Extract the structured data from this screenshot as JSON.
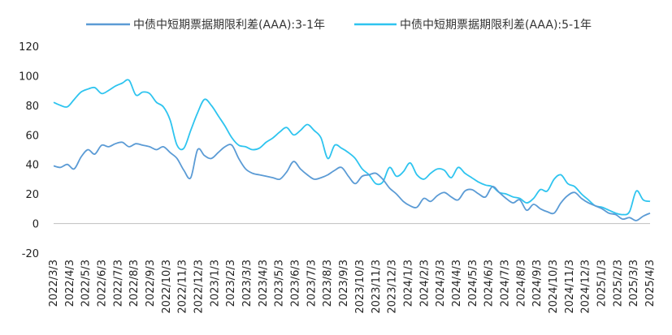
{
  "chart_data": {
    "type": "line",
    "title": "",
    "xlabel": "",
    "ylabel": "",
    "ylim": [
      -20,
      120
    ],
    "yticks": [
      -20,
      0,
      20,
      40,
      60,
      80,
      100,
      120
    ],
    "grid": false,
    "legend_position": "top",
    "x_tick_labels": [
      "2022/3/3",
      "2022/4/3",
      "2022/5/3",
      "2022/6/3",
      "2022/7/3",
      "2022/8/3",
      "2022/9/3",
      "2022/10/3",
      "2022/11/3",
      "2022/12/3",
      "2023/1/3",
      "2023/2/3",
      "2023/3/3",
      "2023/4/3",
      "2023/5/3",
      "2023/6/3",
      "2023/7/3",
      "2023/8/3",
      "2023/9/3",
      "2023/10/3",
      "2023/11/3",
      "2023/12/3",
      "2024/1/3",
      "2024/2/3",
      "2024/3/3",
      "2024/4/3",
      "2024/5/3",
      "2024/6/3",
      "2024/7/3",
      "2024/8/3",
      "2024/9/3",
      "2024/10/3",
      "2024/11/3",
      "2024/12/3",
      "2025/1/3",
      "2025/2/3",
      "2025/3/3",
      "2025/4/3"
    ],
    "series": [
      {
        "name": "中债中短期票据期限利差(AAA):3-1年",
        "color": "#5b9bd5",
        "values": [
          39,
          38,
          40,
          37,
          45,
          50,
          47,
          53,
          52,
          54,
          55,
          52,
          54,
          53,
          52,
          50,
          52,
          48,
          44,
          36,
          31,
          50,
          46,
          44,
          48,
          52,
          53,
          44,
          37,
          34,
          33,
          32,
          31,
          30,
          35,
          42,
          37,
          33,
          30,
          31,
          33,
          36,
          38,
          32,
          27,
          32,
          33,
          34,
          30,
          24,
          20,
          15,
          12,
          11,
          17,
          15,
          19,
          21,
          18,
          16,
          22,
          23,
          20,
          18,
          25,
          21,
          17,
          14,
          16,
          9,
          13,
          10,
          8,
          7,
          14,
          19,
          21,
          17,
          14,
          12,
          10,
          7,
          6,
          3,
          4,
          2,
          5,
          7
        ]
      },
      {
        "name": "中债中短期票据期限利差(AAA):5-1年",
        "color": "#2ec4ef",
        "values": [
          82,
          80,
          79,
          84,
          89,
          91,
          92,
          88,
          90,
          93,
          95,
          97,
          87,
          89,
          88,
          82,
          79,
          70,
          53,
          51,
          63,
          75,
          84,
          80,
          73,
          66,
          58,
          53,
          52,
          50,
          51,
          55,
          58,
          62,
          65,
          60,
          63,
          67,
          63,
          58,
          44,
          53,
          51,
          48,
          44,
          37,
          33,
          27,
          28,
          38,
          32,
          35,
          41,
          33,
          30,
          34,
          37,
          36,
          31,
          38,
          34,
          31,
          28,
          26,
          25,
          21,
          20,
          18,
          17,
          14,
          17,
          23,
          22,
          30,
          33,
          27,
          25,
          20,
          16,
          12,
          11,
          9,
          7,
          6,
          8,
          22,
          16,
          15
        ]
      }
    ]
  }
}
